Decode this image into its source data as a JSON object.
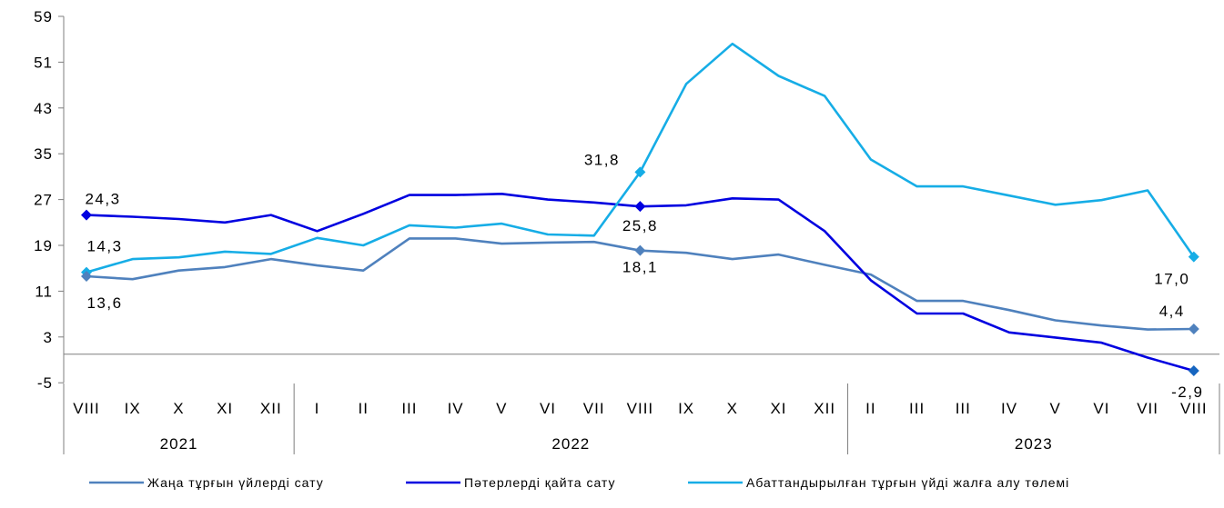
{
  "chart_data": {
    "type": "line",
    "categories": [
      "VIII",
      "IX",
      "X",
      "XI",
      "XII",
      "I",
      "II",
      "III",
      "IV",
      "V",
      "VI",
      "VII",
      "VIII",
      "IX",
      "X",
      "XI",
      "XII",
      "II",
      "III",
      "III",
      "IV",
      "V",
      "VI",
      "VII",
      "VIII"
    ],
    "years": [
      {
        "label": "2021",
        "start": 0,
        "end": 4
      },
      {
        "label": "2022",
        "start": 5,
        "end": 16
      },
      {
        "label": "2023",
        "start": 17,
        "end": 24
      }
    ],
    "yticks": [
      "59",
      "51",
      "43",
      "35",
      "27",
      "19",
      "11",
      "3",
      "-5"
    ],
    "ylim": [
      -5,
      59
    ],
    "series": [
      {
        "name": "Жаңа тұрғын үйлерді сату",
        "color": "#4F81BD",
        "values": [
          13.6,
          13.1,
          14.6,
          15.2,
          16.6,
          15.5,
          14.6,
          20.2,
          20.2,
          19.3,
          19.5,
          19.6,
          18.1,
          17.7,
          16.6,
          17.4,
          15.6,
          13.9,
          9.3,
          9.3,
          7.7,
          5.9,
          5.0,
          4.3,
          4.4
        ]
      },
      {
        "name": "Пәтерлерді қайта сату",
        "color": "#0000E0",
        "values": [
          24.3,
          24.0,
          23.6,
          23.0,
          24.3,
          21.5,
          24.5,
          27.8,
          27.8,
          28.0,
          27.0,
          26.5,
          25.8,
          26.0,
          27.2,
          27.0,
          21.5,
          12.9,
          7.1,
          7.1,
          3.8,
          2.9,
          2.0,
          -0.6,
          -2.9
        ]
      },
      {
        "name": "Абаттандырылған тұрғын үйді жалға алу төлемі",
        "color": "#16ADE6",
        "values": [
          14.3,
          16.6,
          16.9,
          17.9,
          17.5,
          20.3,
          19.0,
          22.5,
          22.1,
          22.8,
          20.9,
          20.7,
          31.8,
          47.2,
          54.2,
          48.6,
          45.1,
          34.0,
          29.3,
          29.3,
          27.7,
          26.1,
          26.9,
          28.6,
          17.0
        ]
      }
    ],
    "annotations": [
      {
        "text": "24,3",
        "series": 1,
        "index": 0
      },
      {
        "text": "14,3",
        "series": 2,
        "index": 0
      },
      {
        "text": "13,6",
        "series": 0,
        "index": 0
      },
      {
        "text": "31,8",
        "series": 2,
        "index": 12
      },
      {
        "text": "25,8",
        "series": 1,
        "index": 12
      },
      {
        "text": "18,1",
        "series": 0,
        "index": 12
      },
      {
        "text": "17,0",
        "series": 2,
        "index": 24
      },
      {
        "text": "4,4",
        "series": 0,
        "index": 24
      },
      {
        "text": "-2,9",
        "series": 1,
        "index": 24
      }
    ],
    "legend_position": "bottom"
  }
}
